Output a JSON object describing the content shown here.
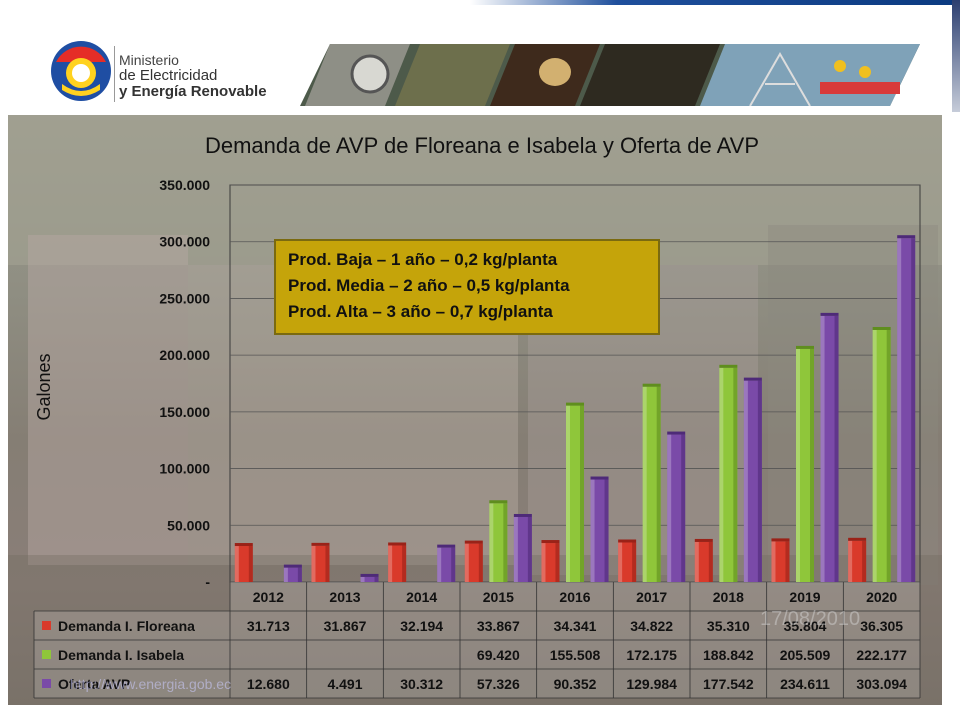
{
  "header": {
    "logo_line1": "Ministerio",
    "logo_line2": "de Electricidad",
    "logo_line3": "y Energía Renovable",
    "logo_icon": "ecuador-sun-emblem-icon"
  },
  "callout": {
    "line1": "Prod. Baja – 1 año – 0,2 kg/planta",
    "line2": "Prod. Media – 2 año – 0,5 kg/planta",
    "line3": "Prod. Alta – 3 año – 0,7 kg/planta"
  },
  "watermark": "http://www.energia.gob.ec",
  "page_date": "17/08/2010",
  "colors": {
    "floreana": "#d93a2b",
    "isabela": "#8fc63a",
    "oferta": "#7a4aa8",
    "callout_bg": "#c5a40a"
  },
  "chart_data": {
    "type": "bar",
    "title": "Demanda de AVP de Floreana e Isabela y Oferta de AVP",
    "ylabel": "Galones",
    "xlabel": "",
    "ylim": [
      0,
      350000
    ],
    "yticks": [
      "-",
      "50.000",
      "100.000",
      "150.000",
      "200.000",
      "250.000",
      "300.000",
      "350.000"
    ],
    "grid": true,
    "categories": [
      "2012",
      "2013",
      "2014",
      "2015",
      "2016",
      "2017",
      "2018",
      "2019",
      "2020"
    ],
    "series": [
      {
        "name": "Demanda I. Floreana",
        "values": [
          31713,
          31867,
          32194,
          33867,
          34341,
          34822,
          35310,
          35804,
          36305
        ],
        "labels": [
          "31.713",
          "31.867",
          "32.194",
          "33.867",
          "34.341",
          "34.822",
          "35.310",
          "35.804",
          "36.305"
        ]
      },
      {
        "name": "Demanda I. Isabela",
        "values": [
          null,
          null,
          null,
          69420,
          155508,
          172175,
          188842,
          205509,
          222177
        ],
        "labels": [
          "",
          "",
          "",
          "69.420",
          "155.508",
          "172.175",
          "188.842",
          "205.509",
          "222.177"
        ]
      },
      {
        "name": "Oferta AVP",
        "values": [
          12680,
          4491,
          30312,
          57326,
          90352,
          129984,
          177542,
          234611,
          303094
        ],
        "labels": [
          "12.680",
          "4.491",
          "30.312",
          "57.326",
          "90.352",
          "129.984",
          "177.542",
          "234.611",
          "303.094"
        ]
      }
    ]
  }
}
